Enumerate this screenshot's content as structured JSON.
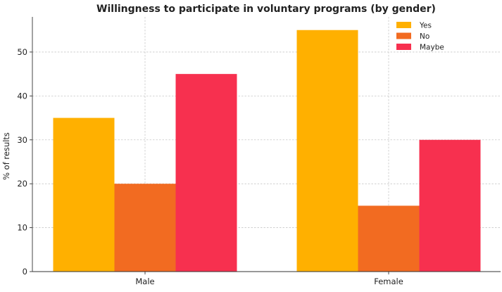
{
  "chart_data": {
    "type": "bar",
    "title": "Willingness to participate in voluntary programs (by gender)",
    "xlabel": "",
    "ylabel": "% of results",
    "categories": [
      "Male",
      "Female"
    ],
    "series": [
      {
        "name": "Yes",
        "values": [
          35,
          55
        ],
        "color": "#FFB000"
      },
      {
        "name": "No",
        "values": [
          20,
          15
        ],
        "color": "#F26B21"
      },
      {
        "name": "Maybe",
        "values": [
          45,
          30
        ],
        "color": "#F7304F"
      }
    ],
    "ylim": [
      0,
      58
    ],
    "yticks": [
      0,
      10,
      20,
      30,
      40,
      50
    ],
    "grid": true,
    "legend_position": "top-right"
  }
}
